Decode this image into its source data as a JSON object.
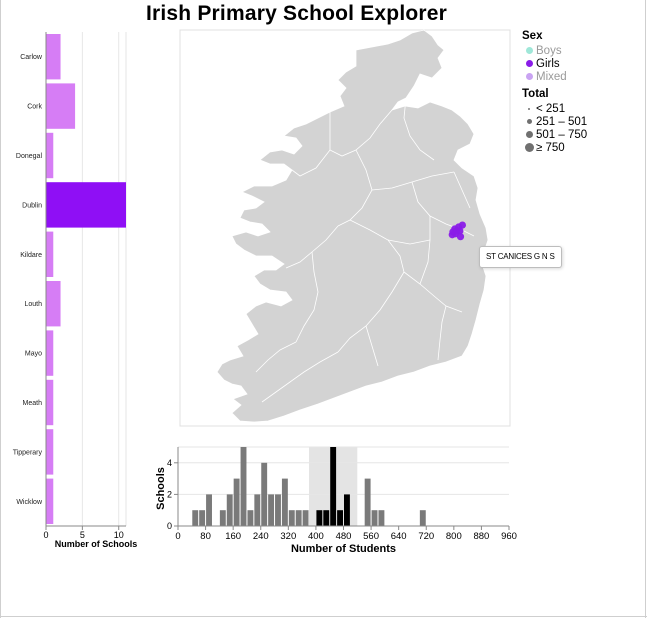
{
  "page": {
    "title": "Irish Primary School Explorer"
  },
  "legend": {
    "sex": {
      "title": "Sex",
      "items": [
        {
          "label": "Boys",
          "color": "#9fe7d8",
          "muted": true
        },
        {
          "label": "Girls",
          "color": "#8a1ce8",
          "muted": false
        },
        {
          "label": "Mixed",
          "color": "#c9a3f2",
          "muted": true
        }
      ]
    },
    "total": {
      "title": "Total",
      "items": [
        {
          "label": "< 251"
        },
        {
          "label": "251 – 501"
        },
        {
          "label": "501 – 750"
        },
        {
          "label": "≥ 750"
        }
      ]
    }
  },
  "tooltip": {
    "text": "ST CANICES G N S"
  },
  "colors": {
    "county_bar": "#d67df5",
    "county_bar_selected": "#8f0ff5",
    "map_land": "#d3d3d3",
    "map_border": "#ffffff",
    "school_point": "#8a1ce8",
    "hist_bar": "#7a7a7a",
    "hist_bar_selected": "#000000",
    "brush": "#e4e4e4"
  },
  "chart_data": [
    {
      "type": "bar",
      "orientation": "horizontal",
      "categories": [
        "Carlow",
        "Cork",
        "Donegal",
        "Dublin",
        "Kildare",
        "Louth",
        "Mayo",
        "Meath",
        "Tipperary",
        "Wicklow"
      ],
      "values": [
        2,
        4,
        1,
        11,
        1,
        2,
        1,
        1,
        1,
        1
      ],
      "selected": "Dublin",
      "xlabel": "Number of Schools",
      "xlim": [
        0,
        11
      ],
      "xticks": [
        0,
        5,
        10
      ],
      "grid": true
    },
    {
      "type": "scatter",
      "subtype": "map",
      "region": "Ireland",
      "points": [
        {
          "name": "ST CANICES G N S",
          "sex": "Girls",
          "lon": -6.27,
          "lat": 53.39
        },
        {
          "sex": "Girls",
          "lon": -6.3,
          "lat": 53.36
        },
        {
          "sex": "Girls",
          "lon": -6.24,
          "lat": 53.37
        },
        {
          "sex": "Girls",
          "lon": -6.21,
          "lat": 53.41
        },
        {
          "sex": "Girls",
          "lon": -6.19,
          "lat": 53.37
        },
        {
          "sex": "Girls",
          "lon": -6.26,
          "lat": 53.34
        },
        {
          "sex": "Girls",
          "lon": -6.18,
          "lat": 53.31
        },
        {
          "sex": "Girls",
          "lon": -6.15,
          "lat": 53.43
        },
        {
          "sex": "Girls",
          "lon": -6.31,
          "lat": 53.33
        }
      ]
    },
    {
      "type": "bar",
      "subtype": "histogram",
      "x": [
        50,
        70,
        90,
        110,
        130,
        150,
        170,
        190,
        210,
        230,
        250,
        270,
        290,
        310,
        330,
        350,
        370,
        390,
        410,
        430,
        450,
        470,
        490,
        510,
        530,
        550,
        570,
        590,
        610,
        630,
        650,
        670,
        690,
        710,
        730
      ],
      "values": [
        1,
        1,
        2,
        0,
        1,
        2,
        3,
        5,
        1,
        2,
        4,
        2,
        2,
        3,
        1,
        1,
        1,
        0,
        1,
        1,
        5,
        1,
        2,
        0,
        0,
        3,
        1,
        1,
        0,
        0,
        0,
        0,
        0,
        1,
        0
      ],
      "bin_width": 20,
      "brush": [
        380,
        520
      ],
      "xlabel": "Number of Students",
      "ylabel": "Schools",
      "xlim": [
        0,
        960
      ],
      "ylim": [
        0,
        5
      ],
      "xticks": [
        0,
        80,
        160,
        240,
        320,
        400,
        480,
        560,
        640,
        720,
        800,
        880,
        960
      ],
      "yticks": [
        0,
        2,
        4
      ],
      "grid": true
    }
  ]
}
